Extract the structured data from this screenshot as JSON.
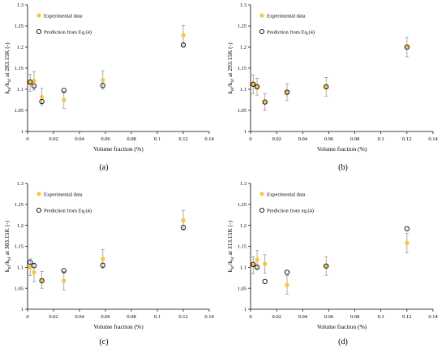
{
  "colors": {
    "experimental": "#f5c842",
    "prediction_stroke": "#000000",
    "errorbar": "#8a8a8a",
    "axis": "#000000"
  },
  "chart_data": [
    {
      "type": "scatter",
      "panel_label": "(a)",
      "xlabel": "Volume fraction (%)",
      "ylabel": "k_nf/k_bf at 283.15K (-)",
      "ylabel_parts": {
        "main": "k",
        "sub1": "nf",
        "mid": "/k",
        "sub2": "bf",
        "tail": " at 283.15K (-)"
      },
      "xlim": [
        0,
        0.14
      ],
      "ylim": [
        1,
        1.3
      ],
      "xticks": [
        "0",
        "0.02",
        "0.04",
        "0.06",
        "0.08",
        "0.1",
        "0.12",
        "0.14"
      ],
      "yticks": [
        "1",
        "1.05",
        "1.1",
        "1.15",
        "1.2",
        "1.25",
        "1.3"
      ],
      "legend_position": "top-left",
      "series": [
        {
          "name": "Experimental data",
          "marker": "filled-circle",
          "x": [
            0.002,
            0.005,
            0.011,
            0.028,
            0.058,
            0.12
          ],
          "y": [
            1.115,
            1.12,
            1.082,
            1.075,
            1.122,
            1.228
          ],
          "err": [
            0.02,
            0.022,
            0.02,
            0.02,
            0.022,
            0.023
          ]
        },
        {
          "name": "Prediction from Eq.(4)",
          "marker": "open-circle",
          "x": [
            0.002,
            0.005,
            0.011,
            0.028,
            0.058,
            0.12
          ],
          "y": [
            1.117,
            1.108,
            1.071,
            1.097,
            1.109,
            1.205
          ]
        }
      ]
    },
    {
      "type": "scatter",
      "panel_label": "(b)",
      "xlabel": "Volume fraction (%)",
      "ylabel": "k_nf/k_bf at 293.15K (-)",
      "ylabel_parts": {
        "main": "k",
        "sub1": "nf",
        "mid": "/k",
        "sub2": "bf",
        "tail": " at 293.15K (-)"
      },
      "xlim": [
        0,
        0.14
      ],
      "ylim": [
        1,
        1.3
      ],
      "xticks": [
        "0",
        "0.02",
        "0.04",
        "0.06",
        "0.08",
        "0.1",
        "0.12",
        "0.14"
      ],
      "yticks": [
        "1",
        "1.05",
        "1.1",
        "1.15",
        "1.2",
        "1.25",
        "1.3"
      ],
      "legend_position": "top-left",
      "series": [
        {
          "name": "Experimental data",
          "marker": "filled-circle",
          "x": [
            0.002,
            0.005,
            0.011,
            0.028,
            0.058,
            0.12
          ],
          "y": [
            1.112,
            1.106,
            1.07,
            1.093,
            1.106,
            1.2
          ],
          "err": [
            0.022,
            0.02,
            0.02,
            0.02,
            0.022,
            0.023
          ]
        },
        {
          "name": "Prediction from Eq.(4)",
          "marker": "open-circle",
          "x": [
            0.002,
            0.005,
            0.011,
            0.028,
            0.058,
            0.12
          ],
          "y": [
            1.112,
            1.106,
            1.07,
            1.093,
            1.106,
            1.2
          ]
        }
      ]
    },
    {
      "type": "scatter",
      "panel_label": "(c)",
      "xlabel": "Volume fraction (%)",
      "ylabel": "k_nf/k_bf at 303.15K (-)",
      "ylabel_parts": {
        "main": "k",
        "sub1": "nf",
        "mid": "/k",
        "sub2": "bf",
        "tail": " at 303.15K (-)"
      },
      "xlim": [
        0,
        0.14
      ],
      "ylim": [
        1,
        1.3
      ],
      "xticks": [
        "0",
        "0.02",
        "0.04",
        "0.06",
        "0.08",
        "0.1",
        "0.12",
        "0.14"
      ],
      "yticks": [
        "1",
        "1.05",
        "1.1",
        "1.15",
        "1.2",
        "1.25",
        "1.3"
      ],
      "legend_position": "top-left",
      "series": [
        {
          "name": "Experimental data",
          "marker": "filled-circle",
          "x": [
            0.002,
            0.005,
            0.011,
            0.028,
            0.058,
            0.12
          ],
          "y": [
            1.1,
            1.088,
            1.07,
            1.068,
            1.12,
            1.212
          ],
          "err": [
            0.02,
            0.022,
            0.02,
            0.022,
            0.022,
            0.023
          ]
        },
        {
          "name": "Prediction from Eq.(4)",
          "marker": "open-circle",
          "x": [
            0.002,
            0.005,
            0.011,
            0.028,
            0.058,
            0.12
          ],
          "y": [
            1.112,
            1.104,
            1.068,
            1.092,
            1.105,
            1.195
          ]
        }
      ]
    },
    {
      "type": "scatter",
      "panel_label": "(d)",
      "xlabel": "Volume fraction (%)",
      "ylabel": "k_nf/k_bf at 313.15K (-)",
      "ylabel_parts": {
        "main": "k",
        "sub1": "nf",
        "mid": "/k",
        "sub2": "bf",
        "tail": " at 313.15K (-)"
      },
      "xlim": [
        0,
        0.14
      ],
      "ylim": [
        1,
        1.3
      ],
      "xticks": [
        "0",
        "0.02",
        "0.04",
        "0.06",
        "0.08",
        "0.1",
        "0.12",
        "0.14"
      ],
      "yticks": [
        "1",
        "1.05",
        "1.1",
        "1.15",
        "1.2",
        "1.25",
        "1.3"
      ],
      "legend_position": "top-left",
      "series": [
        {
          "name": "Experimental data",
          "marker": "filled-circle",
          "x": [
            0.002,
            0.005,
            0.011,
            0.028,
            0.058,
            0.12
          ],
          "y": [
            1.105,
            1.118,
            1.108,
            1.058,
            1.103,
            1.158
          ],
          "err": [
            0.02,
            0.022,
            0.022,
            0.022,
            0.022,
            0.023
          ]
        },
        {
          "name": "Prediction from eq.(4)",
          "marker": "open-circle",
          "x": [
            0.002,
            0.005,
            0.011,
            0.028,
            0.058,
            0.12
          ],
          "y": [
            1.107,
            1.1,
            1.066,
            1.088,
            1.103,
            1.192
          ]
        }
      ]
    }
  ]
}
